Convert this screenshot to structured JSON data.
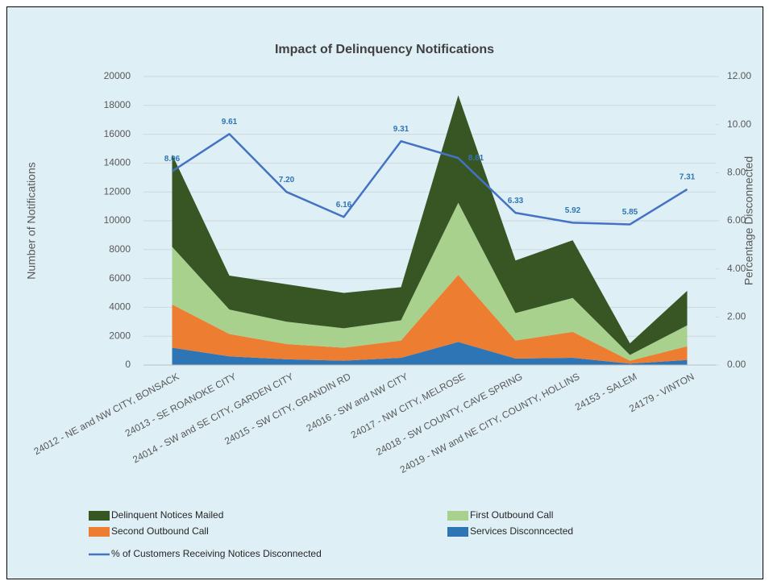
{
  "chart_data": {
    "type": "stacked_area_line",
    "title": "Impact of Delinquency Notifications",
    "y_label": "Number of Notifications",
    "y2_label": "Percentage Disconnected",
    "categories": [
      "24012 - NE and NW CITY, BONSACK",
      "24013 - SE ROANOKE CITY",
      "24014 - SW and SE CITY, GARDEN CITY",
      "24015 - SW CITY, GRANDIN RD",
      "24016 - SW and NW CITY",
      "24017 - NW CITY, MELROSE",
      "24018 - SW COUNTY, CAVE SPRING",
      "24019 - NW and NE CITY, COUNTY, HOLLINS",
      "24153 - SALEM",
      "24179 - VINTON"
    ],
    "ylim": [
      0,
      20000
    ],
    "yticks": [
      0,
      2000,
      4000,
      6000,
      8000,
      10000,
      12000,
      14000,
      16000,
      18000,
      20000
    ],
    "y2lim": [
      0,
      12
    ],
    "y2ticks": [
      {
        "value": 0,
        "label": "0.00"
      },
      {
        "value": 2,
        "label": "2.00"
      },
      {
        "value": 4,
        "label": "4.00"
      },
      {
        "value": 6,
        "label": "6.00"
      },
      {
        "value": 8,
        "label": "8.00"
      },
      {
        "value": 10,
        "label": "10.00"
      },
      {
        "value": 12,
        "label": "12.00"
      }
    ],
    "grid": true,
    "legend": "bottom",
    "series": [
      {
        "name": "Delinquent Notices Mailed",
        "color": "#375623",
        "values": [
          6400,
          2350,
          2600,
          2450,
          2300,
          7450,
          3650,
          4000,
          800,
          2400
        ]
      },
      {
        "name": "First Outbound Call",
        "color": "#a9d18e",
        "values": [
          4000,
          1700,
          1550,
          1350,
          1400,
          5000,
          1900,
          2350,
          400,
          1450
        ]
      },
      {
        "name": "Second Outbound Call",
        "color": "#ed7d31",
        "values": [
          3000,
          1550,
          1050,
          900,
          1200,
          4650,
          1250,
          1800,
          200,
          950
        ]
      },
      {
        "name": "Services Disconncected",
        "color": "#2e75b6",
        "values": [
          1200,
          600,
          400,
          300,
          500,
          1600,
          450,
          500,
          100,
          350
        ]
      },
      {
        "name": "% of Customers Receiving Notices Disconnected",
        "color": "#4472c4",
        "axis": "y2",
        "values": [
          8.06,
          9.61,
          7.2,
          6.16,
          9.31,
          8.61,
          6.33,
          5.92,
          5.85,
          7.31
        ],
        "value_labels": [
          "8.06",
          "9.61",
          "7.20",
          "6.16",
          "9.31",
          "8.61",
          "6.33",
          "5.92",
          "5.85",
          "7.31"
        ]
      }
    ]
  }
}
